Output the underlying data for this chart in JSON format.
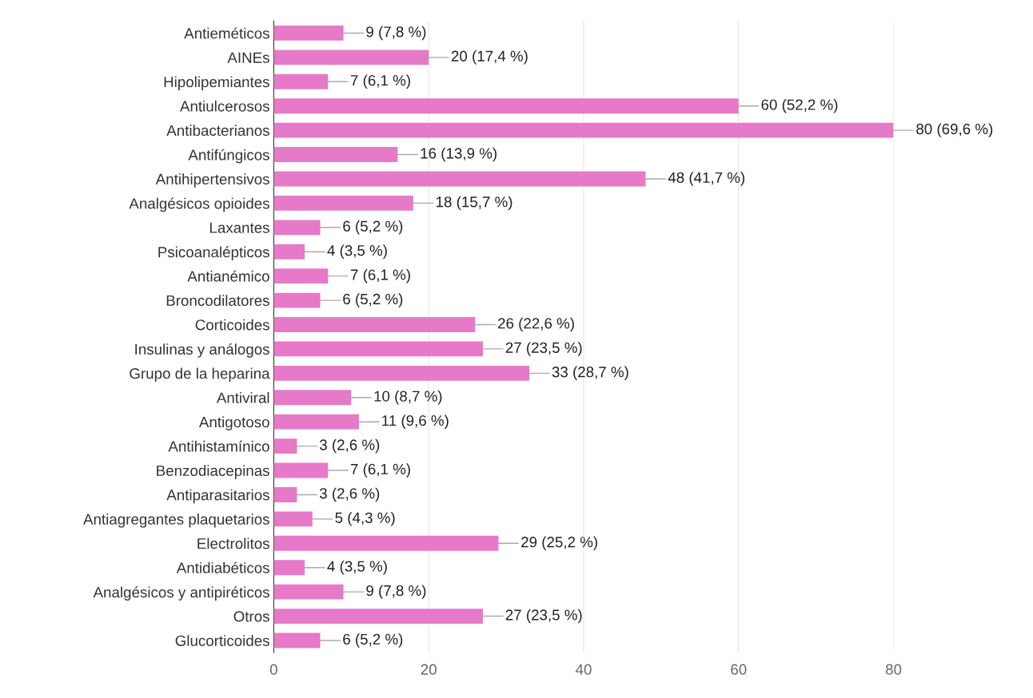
{
  "chart_data": {
    "type": "bar",
    "orientation": "horizontal",
    "categories": [
      "Antieméticos",
      "AINEs",
      "Hipolipemiantes",
      "Antiulcerosos",
      "Antibacterianos",
      "Antifúngicos",
      "Antihipertensivos",
      "Analgésicos opioides",
      "Laxantes",
      "Psicoanalépticos",
      "Antianémico",
      "Broncodilatores",
      "Corticoides",
      "Insulinas y análogos",
      "Grupo de la heparina",
      "Antiviral",
      "Antigotoso",
      "Antihistamínico",
      "Benzodiacepinas",
      "Antiparasitarios",
      "Antiagregantes plaquetarios",
      "Electrolitos",
      "Antidiabéticos",
      "Analgésicos y antipiréticos",
      "Otros",
      "Glucorticoides"
    ],
    "values": [
      9,
      20,
      7,
      60,
      80,
      16,
      48,
      18,
      6,
      4,
      7,
      6,
      26,
      27,
      33,
      10,
      11,
      3,
      7,
      3,
      5,
      29,
      4,
      9,
      27,
      6
    ],
    "value_labels": [
      "9 (7,8 %)",
      "20 (17,4 %)",
      "7 (6,1 %)",
      "60 (52,2 %)",
      "80 (69,6 %)",
      "16 (13,9 %)",
      "48 (41,7 %)",
      "18 (15,7 %)",
      "6 (5,2 %)",
      "4 (3,5 %)",
      "7 (6,1 %)",
      "6 (5,2 %)",
      "26 (22,6 %)",
      "27 (23,5 %)",
      "33 (28,7 %)",
      "10 (8,7 %)",
      "11 (9,6 %)",
      "3 (2,6 %)",
      "7 (6,1 %)",
      "3 (2,6 %)",
      "5 (4,3 %)",
      "29 (25,2 %)",
      "4 (3,5 %)",
      "9 (7,8 %)",
      "27 (23,5 %)",
      "6 (5,2 %)"
    ],
    "color": "#e67ac8",
    "xlim": [
      0,
      80
    ],
    "xticks": [
      0,
      20,
      40,
      60,
      80
    ],
    "grid": "x"
  }
}
